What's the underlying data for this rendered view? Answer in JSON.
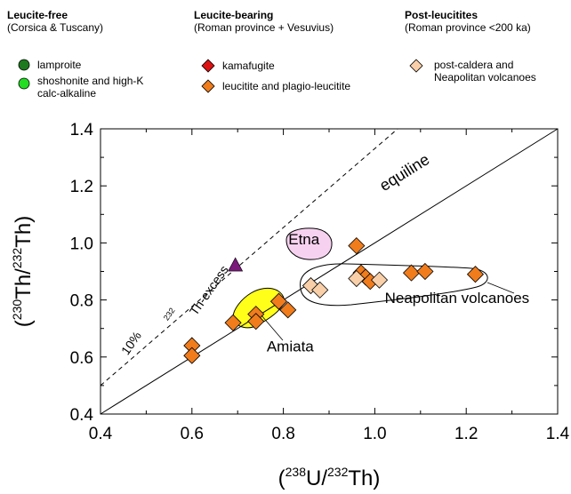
{
  "legend": {
    "groups": [
      {
        "title": "Leucite-free",
        "subtitle": "(Corsica & Tuscany)",
        "items": [
          {
            "label": "lamproite",
            "marker": "circle",
            "color": "#1e7a1e"
          },
          {
            "label": "shoshonite and high-K\ncalc-alkaline",
            "marker": "circle",
            "color": "#22dd22"
          }
        ]
      },
      {
        "title": "Leucite-bearing",
        "subtitle": "(Roman province + Vesuvius)",
        "items": [
          {
            "label": "kamafugite",
            "marker": "diamond",
            "color": "#dd1111"
          },
          {
            "label": "leucitite and plagio-leucitite",
            "marker": "diamond",
            "color": "#f07c1c"
          }
        ]
      },
      {
        "title": "Post-leucitites",
        "subtitle": "(Roman province <200 ka)",
        "items": [
          {
            "label": "post-caldera and\nNeapolitan volcanoes",
            "marker": "diamond",
            "color": "#f8cfa8"
          }
        ]
      }
    ]
  },
  "chart_data": {
    "type": "scatter",
    "xlabel": "(238U/232Th)",
    "ylabel": "(230Th/232Th)",
    "xlim": [
      0.4,
      1.4
    ],
    "ylim": [
      0.4,
      1.4
    ],
    "xticks": [
      "0.4",
      "0.6",
      "0.8",
      "1.0",
      "1.2",
      "1.4"
    ],
    "yticks": [
      "0.4",
      "0.6",
      "0.8",
      "1.0",
      "1.2",
      "1.4"
    ],
    "grid": false,
    "reference_lines": [
      {
        "label": "equiline",
        "style": "solid",
        "x": [
          0.4,
          1.4
        ],
        "y": [
          0.4,
          1.4
        ]
      },
      {
        "label": "10% 232Th-excess",
        "style": "dashed",
        "x": [
          0.4,
          1.05
        ],
        "y": [
          0.5,
          1.4
        ]
      }
    ],
    "series": [
      {
        "name": "leucitite and plagio-leucitite",
        "marker": "diamond",
        "color": "#f07c1c",
        "x": [
          0.6,
          0.6,
          0.69,
          0.74,
          0.74,
          0.79,
          0.81,
          0.96,
          0.97,
          0.98,
          0.99,
          1.08,
          1.11,
          1.22
        ],
        "y": [
          0.64,
          0.605,
          0.72,
          0.75,
          0.725,
          0.795,
          0.765,
          0.99,
          0.895,
          0.88,
          0.865,
          0.895,
          0.9,
          0.89
        ]
      },
      {
        "name": "post-caldera and Neapolitan volcanoes",
        "marker": "diamond",
        "color": "#f8cfa8",
        "x": [
          0.86,
          0.88,
          0.96,
          1.01
        ],
        "y": [
          0.85,
          0.835,
          0.875,
          0.87
        ]
      },
      {
        "name": "",
        "marker": "triangle",
        "color": "#7b1a7b",
        "x": [
          0.695
        ],
        "y": [
          0.92
        ]
      }
    ],
    "annotations": [
      {
        "text": "equiline",
        "x": 1.02,
        "y": 1.18
      },
      {
        "text": "Etna",
        "x": 0.845,
        "y": 0.995
      },
      {
        "text": "Neapolitan volcanoes",
        "x": 1.18,
        "y": 0.79
      },
      {
        "text": "Amiata",
        "x": 0.815,
        "y": 0.62
      },
      {
        "text": "10%",
        "x": 0.475,
        "y": 0.64
      },
      {
        "text": "232",
        "x": 0.555,
        "y": 0.745
      },
      {
        "text": "Th-excess",
        "x": 0.645,
        "y": 0.825
      }
    ]
  }
}
